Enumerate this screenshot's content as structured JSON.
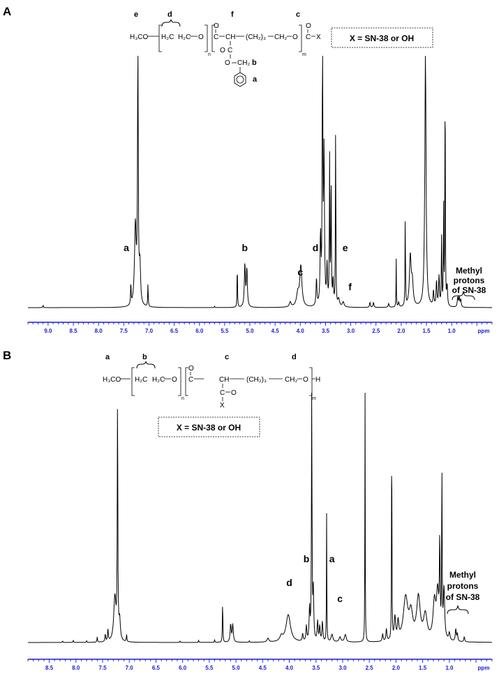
{
  "chart_data": [
    {
      "type": "line",
      "panel_label": "A",
      "x_unit_label": "ppm",
      "x_ticks": [
        "9.0",
        "8.5",
        "8.0",
        "7.5",
        "7.0",
        "6.5",
        "6.0",
        "5.5",
        "5.0",
        "4.5",
        "4.0",
        "3.5",
        "3.0",
        "2.5",
        "2.0",
        "1.5",
        "1.0"
      ],
      "x_range": [
        9.4,
        0.2
      ],
      "x_reversed": true,
      "grid": false,
      "legend": "none",
      "series_color": "#000000",
      "axis_color": "#1a1ad6",
      "peaks": [
        {
          "ppm": 9.1,
          "h": 0.01,
          "w": 0.006
        },
        {
          "ppm": 7.36,
          "h": 0.09,
          "w": 0.006
        },
        {
          "ppm": 7.27,
          "h": 0.32,
          "w": 0.02
        },
        {
          "ppm": 7.22,
          "h": 1.0,
          "w": 0.009
        },
        {
          "ppm": 7.18,
          "h": 0.15,
          "w": 0.015
        },
        {
          "ppm": 7.02,
          "h": 0.09,
          "w": 0.006
        },
        {
          "ppm": 5.7,
          "h": 0.005,
          "w": 0.006
        },
        {
          "ppm": 5.25,
          "h": 0.18,
          "w": 0.005
        },
        {
          "ppm": 5.1,
          "h": 0.17,
          "w": 0.012
        },
        {
          "ppm": 5.06,
          "h": 0.15,
          "w": 0.012
        },
        {
          "ppm": 4.2,
          "h": 0.02,
          "w": 0.02
        },
        {
          "ppm": 4.05,
          "h": 0.05,
          "w": 0.03
        },
        {
          "ppm": 3.99,
          "h": 0.16,
          "w": 0.025
        },
        {
          "ppm": 3.68,
          "h": 0.11,
          "w": 0.01
        },
        {
          "ppm": 3.6,
          "h": 0.27,
          "w": 0.01
        },
        {
          "ppm": 3.56,
          "h": 1.0,
          "w": 0.008
        },
        {
          "ppm": 3.53,
          "h": 0.6,
          "w": 0.01
        },
        {
          "ppm": 3.47,
          "h": 0.16,
          "w": 0.01
        },
        {
          "ppm": 3.42,
          "h": 0.58,
          "w": 0.006
        },
        {
          "ppm": 3.39,
          "h": 0.55,
          "w": 0.006
        },
        {
          "ppm": 3.35,
          "h": 0.1,
          "w": 0.01
        },
        {
          "ppm": 3.3,
          "h": 0.75,
          "w": 0.005
        },
        {
          "ppm": 3.24,
          "h": 0.03,
          "w": 0.02
        },
        {
          "ppm": 3.15,
          "h": 0.02,
          "w": 0.02
        },
        {
          "ppm": 2.62,
          "h": 0.02,
          "w": 0.01
        },
        {
          "ppm": 2.55,
          "h": 0.02,
          "w": 0.01
        },
        {
          "ppm": 2.25,
          "h": 0.015,
          "w": 0.01
        },
        {
          "ppm": 2.1,
          "h": 0.2,
          "w": 0.004
        },
        {
          "ppm": 2.05,
          "h": 0.02,
          "w": 0.01
        },
        {
          "ppm": 1.92,
          "h": 0.37,
          "w": 0.005
        },
        {
          "ppm": 1.82,
          "h": 0.2,
          "w": 0.02
        },
        {
          "ppm": 1.78,
          "h": 0.09,
          "w": 0.02
        },
        {
          "ppm": 1.52,
          "h": 1.0,
          "w": 0.015
        },
        {
          "ppm": 1.36,
          "h": 0.06,
          "w": 0.01
        },
        {
          "ppm": 1.3,
          "h": 0.1,
          "w": 0.01
        },
        {
          "ppm": 1.25,
          "h": 0.12,
          "w": 0.01
        },
        {
          "ppm": 1.2,
          "h": 0.28,
          "w": 0.006
        },
        {
          "ppm": 1.16,
          "h": 0.39,
          "w": 0.005
        },
        {
          "ppm": 1.13,
          "h": 1.0,
          "w": 0.005
        },
        {
          "ppm": 1.09,
          "h": 0.08,
          "w": 0.01
        },
        {
          "ppm": 0.88,
          "h": 0.04,
          "w": 0.01
        },
        {
          "ppm": 0.85,
          "h": 0.04,
          "w": 0.01
        },
        {
          "ppm": 0.82,
          "h": 0.03,
          "w": 0.01
        }
      ],
      "peak_labels": [
        {
          "text": "a",
          "ppm": 7.45
        },
        {
          "text": "b",
          "ppm": 5.1
        },
        {
          "text": "c",
          "ppm": 4.0
        },
        {
          "text": "d",
          "ppm": 3.7
        },
        {
          "text": "e",
          "ppm": 3.22
        },
        {
          "text": "f",
          "ppm": 3.18
        }
      ],
      "annotation": {
        "line1": "Methyl",
        "line2": "protons",
        "line3": "of SN-38"
      },
      "box_text": "X = SN-38 or OH",
      "structure": {
        "h3co": "H₃CO",
        "unit1": "H₂C",
        "unit1b": "H₂C",
        "o1": "O",
        "n": "n",
        "m": "m",
        "c_eq_o": "C",
        "ch": "CH",
        "chain": "(CH₂)₃",
        "ch2": "CH₂",
        "o2": "O",
        "c2": "C",
        "x": "X",
        "o_side": "O",
        "c_side": "C",
        "o_eq": "O",
        "ch2_side": "CH₂",
        "letters": {
          "e": "e",
          "d": "d",
          "f": "f",
          "c": "c",
          "b": "b",
          "a": "a"
        }
      }
    },
    {
      "type": "line",
      "panel_label": "B",
      "x_unit_label": "ppm",
      "x_ticks": [
        "8.5",
        "8.0",
        "7.5",
        "7.0",
        "6.5",
        "6.0",
        "5.5",
        "5.0",
        "4.5",
        "4.0",
        "3.5",
        "3.0",
        "2.5",
        "2.0",
        "1.5",
        "1.0"
      ],
      "x_range": [
        8.9,
        0.2
      ],
      "x_reversed": true,
      "grid": false,
      "legend": "none",
      "series_color": "#000000",
      "axis_color": "#1a1ad6",
      "peaks": [
        {
          "ppm": 8.25,
          "h": 0.006,
          "w": 0.006
        },
        {
          "ppm": 8.05,
          "h": 0.008,
          "w": 0.006
        },
        {
          "ppm": 7.8,
          "h": 0.006,
          "w": 0.006
        },
        {
          "ppm": 7.6,
          "h": 0.022,
          "w": 0.006
        },
        {
          "ppm": 7.45,
          "h": 0.03,
          "w": 0.008
        },
        {
          "ppm": 7.4,
          "h": 0.05,
          "w": 0.008
        },
        {
          "ppm": 7.27,
          "h": 0.18,
          "w": 0.025
        },
        {
          "ppm": 7.22,
          "h": 1.0,
          "w": 0.006
        },
        {
          "ppm": 7.18,
          "h": 0.08,
          "w": 0.015
        },
        {
          "ppm": 7.05,
          "h": 0.03,
          "w": 0.006
        },
        {
          "ppm": 6.05,
          "h": 0.006,
          "w": 0.006
        },
        {
          "ppm": 5.7,
          "h": 0.008,
          "w": 0.006
        },
        {
          "ppm": 5.4,
          "h": 0.01,
          "w": 0.006
        },
        {
          "ppm": 5.25,
          "h": 0.17,
          "w": 0.005
        },
        {
          "ppm": 5.1,
          "h": 0.07,
          "w": 0.012
        },
        {
          "ppm": 5.06,
          "h": 0.07,
          "w": 0.012
        },
        {
          "ppm": 4.75,
          "h": 0.006,
          "w": 0.006
        },
        {
          "ppm": 4.4,
          "h": 0.015,
          "w": 0.02
        },
        {
          "ppm": 4.15,
          "h": 0.02,
          "w": 0.03
        },
        {
          "ppm": 4.02,
          "h": 0.11,
          "w": 0.05
        },
        {
          "ppm": 3.75,
          "h": 0.03,
          "w": 0.01
        },
        {
          "ppm": 3.68,
          "h": 0.06,
          "w": 0.01
        },
        {
          "ppm": 3.62,
          "h": 0.13,
          "w": 0.01
        },
        {
          "ppm": 3.58,
          "h": 1.0,
          "w": 0.006
        },
        {
          "ppm": 3.55,
          "h": 0.2,
          "w": 0.01
        },
        {
          "ppm": 3.47,
          "h": 0.08,
          "w": 0.01
        },
        {
          "ppm": 3.43,
          "h": 0.06,
          "w": 0.01
        },
        {
          "ppm": 3.38,
          "h": 0.08,
          "w": 0.01
        },
        {
          "ppm": 3.3,
          "h": 0.54,
          "w": 0.004
        },
        {
          "ppm": 3.2,
          "h": 0.03,
          "w": 0.02
        },
        {
          "ppm": 3.05,
          "h": 0.02,
          "w": 0.02
        },
        {
          "ppm": 2.95,
          "h": 0.03,
          "w": 0.02
        },
        {
          "ppm": 2.58,
          "h": 1.0,
          "w": 0.004
        },
        {
          "ppm": 2.25,
          "h": 0.03,
          "w": 0.01
        },
        {
          "ppm": 2.18,
          "h": 0.05,
          "w": 0.01
        },
        {
          "ppm": 2.08,
          "h": 1.0,
          "w": 0.004
        },
        {
          "ppm": 2.02,
          "h": 0.09,
          "w": 0.015
        },
        {
          "ppm": 1.96,
          "h": 0.07,
          "w": 0.015
        },
        {
          "ppm": 1.82,
          "h": 0.17,
          "w": 0.05
        },
        {
          "ppm": 1.72,
          "h": 0.1,
          "w": 0.04
        },
        {
          "ppm": 1.58,
          "h": 0.17,
          "w": 0.04
        },
        {
          "ppm": 1.45,
          "h": 0.1,
          "w": 0.04
        },
        {
          "ppm": 1.28,
          "h": 0.15,
          "w": 0.03
        },
        {
          "ppm": 1.22,
          "h": 0.18,
          "w": 0.025
        },
        {
          "ppm": 1.18,
          "h": 0.36,
          "w": 0.008
        },
        {
          "ppm": 1.14,
          "h": 0.68,
          "w": 0.005
        },
        {
          "ppm": 1.1,
          "h": 0.2,
          "w": 0.015
        },
        {
          "ppm": 1.0,
          "h": 0.03,
          "w": 0.015
        },
        {
          "ppm": 0.88,
          "h": 0.05,
          "w": 0.01
        },
        {
          "ppm": 0.85,
          "h": 0.03,
          "w": 0.01
        },
        {
          "ppm": 0.72,
          "h": 0.02,
          "w": 0.01
        }
      ],
      "peak_labels": [
        {
          "text": "d",
          "ppm": 4.0
        },
        {
          "text": "b",
          "ppm": 3.68
        },
        {
          "text": "a",
          "ppm": 3.28
        },
        {
          "text": "c",
          "ppm": 3.18
        }
      ],
      "annotation": {
        "line1": "Methyl",
        "line2": "protons",
        "line3": "of SN-38"
      },
      "box_text": "X = SN-38 or OH",
      "structure": {
        "h3co": "H₃CO",
        "unit1": "H₂C",
        "unit1b": "H₂C",
        "o1": "O",
        "n": "n",
        "m": "m",
        "c": "C",
        "ch": "CH",
        "chain": "(CH₂)₃",
        "ch2": "CH₂",
        "o2": "O",
        "h": "H",
        "c_side": "C",
        "o_eq": "O",
        "x": "X",
        "o_top": "O",
        "letters": {
          "a": "a",
          "b": "b",
          "c": "c",
          "d": "d"
        }
      }
    }
  ]
}
